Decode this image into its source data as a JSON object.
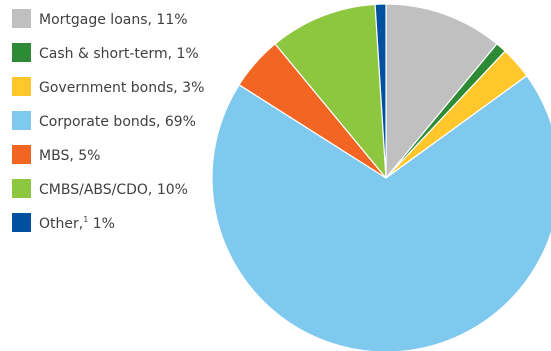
{
  "chart_data": {
    "type": "pie",
    "start": "12 o'clock",
    "direction": "clockwise",
    "legend_position": "left",
    "slices": [
      {
        "label": "Mortgage loans",
        "value": 11,
        "display_label": "Mortgage loans, 11%",
        "color": "#c0c0c0"
      },
      {
        "label": "Cash & short-term",
        "value": 1,
        "display_label": "Cash & short-term, 1%",
        "color": "#2e8b35"
      },
      {
        "label": "Government bonds",
        "value": 3,
        "display_label": "Government bonds, 3%",
        "color": "#ffc72c"
      },
      {
        "label": "Corporate bonds",
        "value": 69,
        "display_label": "Corporate bonds, 69%",
        "color": "#7fc8ee"
      },
      {
        "label": "MBS",
        "value": 5,
        "display_label": "MBS, 5%",
        "color": "#f26522"
      },
      {
        "label": "CMBS/ABS/CDO",
        "value": 10,
        "display_label": "CMBS/ABS/CDO, 10%",
        "color": "#8dc63f"
      },
      {
        "label": "Other",
        "value": 1,
        "display_label": "Other, 1%",
        "display_main": "Other,",
        "footnote": "1",
        "display_tail": " 1%",
        "color": "#0050a0"
      }
    ]
  }
}
